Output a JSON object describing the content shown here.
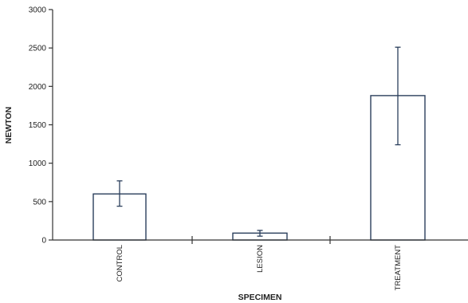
{
  "chart_data": {
    "type": "bar",
    "categories": [
      "CONTROL",
      "LESION",
      "TREATMENT"
    ],
    "values": [
      600,
      90,
      1880
    ],
    "error_low": [
      440,
      50,
      1240
    ],
    "error_high": [
      770,
      125,
      2510
    ],
    "title": "",
    "xlabel": "SPECIMEN",
    "ylabel": "NEWTON",
    "ylim": [
      0,
      3000
    ],
    "yticks": [
      0,
      500,
      1000,
      1500,
      2000,
      2500,
      3000
    ],
    "grid": false,
    "colors": {
      "bar_fill": "#ffffff",
      "bar_stroke": "#2b3f5c",
      "axis": "#333333",
      "text": "#222222"
    }
  }
}
